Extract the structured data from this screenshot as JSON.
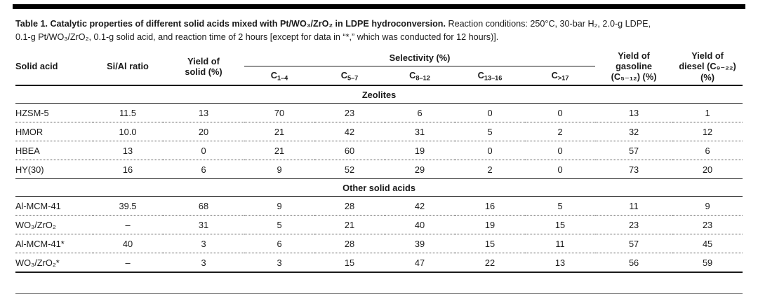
{
  "caption": {
    "title": "Table 1. Catalytic properties of different solid acids mixed with Pt/WO₃/ZrO₂ in LDPE hydroconversion.",
    "text_line1": " Reaction conditions: 250°C, 30-bar H₂, 2.0-g LDPE,",
    "text_line2": "0.1-g Pt/WO₃/ZrO₂, 0.1-g solid acid, and reaction time of 2 hours [except for data in “*,” which was conducted for 12 hours)]."
  },
  "headers": {
    "solid_acid": "Solid acid",
    "si_al": "Si/Al ratio",
    "yield_solid_line1": "Yield of",
    "yield_solid_line2": "solid (%)",
    "selectivity": "Selectivity (%)",
    "c1": "C",
    "c1_sub": "1–4",
    "c2": "C",
    "c2_sub": "5–7",
    "c3": "C",
    "c3_sub": "8–12",
    "c4": "C",
    "c4_sub": "13–16",
    "c5": "C",
    "c5_sub": ">17",
    "gasoline_line1": "Yield of",
    "gasoline_line2": "gasoline",
    "gasoline_line3": "(C₅₋₁₂) (%)",
    "diesel_line1": "Yield of",
    "diesel_line2": "diesel (C₉₋₂₂)",
    "diesel_line3": "(%)"
  },
  "sections": [
    {
      "title": "Zeolites",
      "rows": [
        [
          "HZSM-5",
          "11.5",
          "13",
          "70",
          "23",
          "6",
          "0",
          "0",
          "13",
          "1"
        ],
        [
          "HMOR",
          "10.0",
          "20",
          "21",
          "42",
          "31",
          "5",
          "2",
          "32",
          "12"
        ],
        [
          "HBEA",
          "13",
          "0",
          "21",
          "60",
          "19",
          "0",
          "0",
          "57",
          "6"
        ],
        [
          "HY(30)",
          "16",
          "6",
          "9",
          "52",
          "29",
          "2",
          "0",
          "73",
          "20"
        ]
      ]
    },
    {
      "title": "Other solid acids",
      "rows": [
        [
          "Al-MCM-41",
          "39.5",
          "68",
          "9",
          "28",
          "42",
          "16",
          "5",
          "11",
          "9"
        ],
        [
          "WO₃/ZrO₂",
          "–",
          "31",
          "5",
          "21",
          "40",
          "19",
          "15",
          "23",
          "23"
        ],
        [
          "Al-MCM-41*",
          "40",
          "3",
          "6",
          "28",
          "39",
          "15",
          "11",
          "57",
          "45"
        ],
        [
          "WO₃/ZrO₂*",
          "–",
          "3",
          "3",
          "15",
          "47",
          "22",
          "13",
          "56",
          "59"
        ]
      ]
    }
  ]
}
